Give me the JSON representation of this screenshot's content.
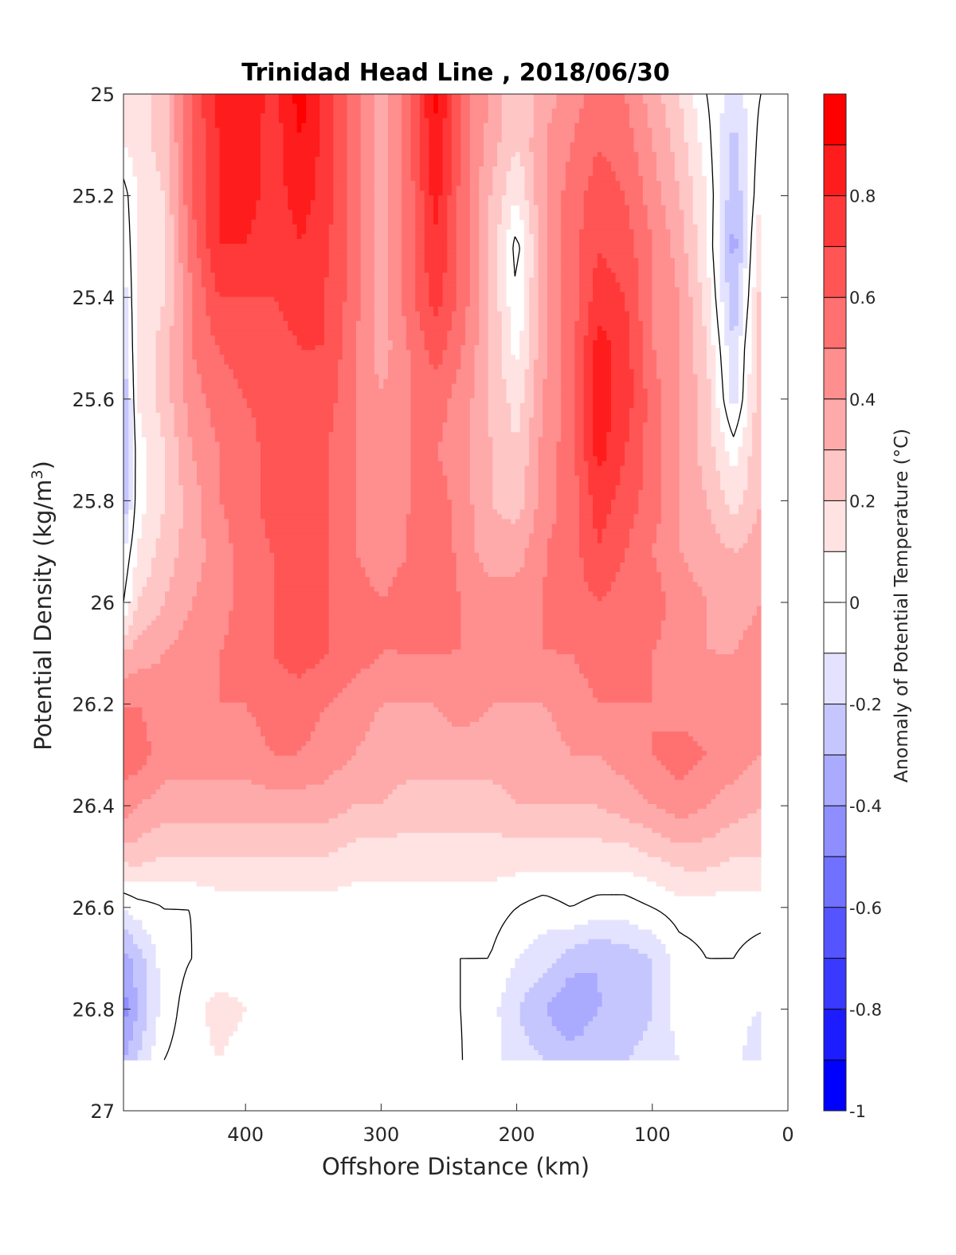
{
  "chart_data": {
    "type": "heatmap",
    "subtype": "filled-contour section",
    "title": "Trinidad Head Line , 2018/06/30",
    "xlabel": "Offshore Distance (km)",
    "ylabel": "Potential Density (kg/m",
    "ylabel_sup": "3",
    "ylabel_close": ")",
    "xlim": [
      490,
      0
    ],
    "x_reversed": true,
    "ylim": [
      25,
      27
    ],
    "y_reversed": true,
    "xticks": [
      400,
      300,
      200,
      100,
      0
    ],
    "yticks": [
      25,
      25.2,
      25.4,
      25.6,
      25.8,
      26,
      26.2,
      26.4,
      26.6,
      26.8,
      27
    ],
    "ytick_labels": [
      "25",
      "25.2",
      "25.4",
      "25.6",
      "25.8",
      "26",
      "26.2",
      "26.4",
      "26.6",
      "26.8",
      "27"
    ],
    "colorbar": {
      "label": "Anomaly of Potential Temperature (°C)",
      "range": [
        -1,
        1
      ],
      "step": 0.1,
      "ticks": [
        0.8,
        0.6,
        0.4,
        0.2,
        0,
        -0.2,
        -0.4,
        -0.6,
        -0.8,
        -1
      ],
      "tick_labels": [
        "0.8",
        "0.6",
        "0.4",
        "0.2",
        "0",
        "-0.2",
        "-0.4",
        "-0.6",
        "-0.8",
        "-1"
      ],
      "negative_color": "#0000ff",
      "positive_color": "#ff0000",
      "neutral_color": "#ffffff"
    },
    "data_extent": {
      "x": [
        20,
        490
      ],
      "y": [
        25,
        26.9
      ]
    },
    "grid": {
      "x": [
        20,
        40,
        60,
        80,
        100,
        120,
        140,
        160,
        180,
        200,
        220,
        240,
        260,
        280,
        300,
        320,
        340,
        360,
        380,
        400,
        420,
        440,
        460,
        480,
        490
      ],
      "y": [
        25,
        25.1,
        25.2,
        25.3,
        25.4,
        25.5,
        25.6,
        25.7,
        25.8,
        25.9,
        26,
        26.1,
        26.2,
        26.3,
        26.4,
        26.5,
        26.6,
        26.7,
        26.8,
        26.9
      ],
      "anomaly": [
        [
          0.0,
          -0.15,
          0.0,
          0.2,
          0.35,
          0.5,
          0.55,
          0.45,
          0.35,
          0.2,
          0.4,
          0.55,
          0.95,
          0.55,
          0.35,
          0.55,
          0.75,
          0.95,
          0.75,
          0.9,
          0.85,
          0.6,
          0.25,
          0.15,
          0.1
        ],
        [
          0.05,
          -0.25,
          0.05,
          0.25,
          0.4,
          0.55,
          0.6,
          0.5,
          0.4,
          0.2,
          0.35,
          0.55,
          0.9,
          0.55,
          0.35,
          0.55,
          0.75,
          0.9,
          0.75,
          0.85,
          0.8,
          0.6,
          0.25,
          0.15,
          0.1
        ],
        [
          0.1,
          -0.3,
          0.1,
          0.3,
          0.45,
          0.6,
          0.65,
          0.55,
          0.4,
          0.1,
          0.3,
          0.55,
          0.85,
          0.55,
          0.35,
          0.55,
          0.75,
          0.85,
          0.75,
          0.85,
          0.8,
          0.6,
          0.2,
          0.1,
          -0.05
        ],
        [
          0.2,
          -0.35,
          0.1,
          0.35,
          0.5,
          0.65,
          0.7,
          0.55,
          0.4,
          -0.05,
          0.3,
          0.55,
          0.8,
          0.55,
          0.35,
          0.55,
          0.7,
          0.8,
          0.7,
          0.8,
          0.8,
          0.55,
          0.2,
          0.1,
          -0.1
        ],
        [
          0.25,
          -0.3,
          0.15,
          0.4,
          0.5,
          0.7,
          0.75,
          0.55,
          0.4,
          0.0,
          0.3,
          0.55,
          0.75,
          0.55,
          0.35,
          0.55,
          0.7,
          0.75,
          0.7,
          0.7,
          0.7,
          0.5,
          0.2,
          0.1,
          -0.15
        ],
        [
          0.3,
          -0.2,
          0.2,
          0.4,
          0.5,
          0.75,
          0.85,
          0.55,
          0.4,
          0.05,
          0.3,
          0.5,
          0.65,
          0.5,
          0.35,
          0.5,
          0.7,
          0.7,
          0.65,
          0.65,
          0.6,
          0.5,
          0.25,
          0.1,
          -0.2
        ],
        [
          0.3,
          -0.15,
          0.25,
          0.4,
          0.55,
          0.75,
          0.85,
          0.55,
          0.4,
          0.15,
          0.3,
          0.45,
          0.55,
          0.5,
          0.4,
          0.5,
          0.65,
          0.7,
          0.65,
          0.6,
          0.55,
          0.45,
          0.25,
          0.1,
          -0.3
        ],
        [
          0.3,
          0.05,
          0.25,
          0.4,
          0.55,
          0.7,
          0.85,
          0.55,
          0.45,
          0.2,
          0.3,
          0.45,
          0.5,
          0.5,
          0.45,
          0.5,
          0.6,
          0.7,
          0.65,
          0.55,
          0.5,
          0.4,
          0.2,
          0.05,
          -0.35
        ],
        [
          0.3,
          0.15,
          0.3,
          0.4,
          0.55,
          0.65,
          0.75,
          0.55,
          0.45,
          0.25,
          0.3,
          0.45,
          0.55,
          0.5,
          0.45,
          0.5,
          0.6,
          0.7,
          0.65,
          0.55,
          0.5,
          0.35,
          0.2,
          0.05,
          -0.3
        ],
        [
          0.35,
          0.3,
          0.35,
          0.4,
          0.5,
          0.6,
          0.7,
          0.55,
          0.5,
          0.35,
          0.35,
          0.45,
          0.6,
          0.5,
          0.45,
          0.5,
          0.6,
          0.7,
          0.6,
          0.55,
          0.45,
          0.35,
          0.25,
          0.1,
          -0.1
        ],
        [
          0.4,
          0.35,
          0.4,
          0.45,
          0.55,
          0.55,
          0.6,
          0.55,
          0.5,
          0.45,
          0.45,
          0.5,
          0.55,
          0.55,
          0.5,
          0.55,
          0.6,
          0.7,
          0.6,
          0.55,
          0.45,
          0.4,
          0.3,
          0.2,
          0.0
        ],
        [
          0.45,
          0.4,
          0.4,
          0.45,
          0.5,
          0.55,
          0.55,
          0.5,
          0.5,
          0.5,
          0.5,
          0.5,
          0.5,
          0.5,
          0.5,
          0.55,
          0.6,
          0.65,
          0.6,
          0.55,
          0.5,
          0.45,
          0.4,
          0.35,
          0.3
        ],
        [
          0.45,
          0.45,
          0.45,
          0.45,
          0.5,
          0.5,
          0.5,
          0.45,
          0.4,
          0.4,
          0.4,
          0.45,
          0.4,
          0.4,
          0.4,
          0.45,
          0.5,
          0.55,
          0.55,
          0.5,
          0.5,
          0.45,
          0.45,
          0.5,
          0.5
        ],
        [
          0.4,
          0.45,
          0.5,
          0.55,
          0.5,
          0.45,
          0.4,
          0.4,
          0.35,
          0.35,
          0.35,
          0.35,
          0.35,
          0.35,
          0.35,
          0.4,
          0.45,
          0.5,
          0.5,
          0.45,
          0.45,
          0.45,
          0.45,
          0.55,
          0.55
        ],
        [
          0.3,
          0.35,
          0.4,
          0.45,
          0.4,
          0.35,
          0.3,
          0.3,
          0.3,
          0.3,
          0.25,
          0.25,
          0.25,
          0.25,
          0.3,
          0.3,
          0.35,
          0.35,
          0.35,
          0.35,
          0.35,
          0.35,
          0.35,
          0.4,
          0.45
        ],
        [
          0.2,
          0.2,
          0.25,
          0.25,
          0.2,
          0.15,
          0.15,
          0.15,
          0.15,
          0.15,
          0.15,
          0.15,
          0.15,
          0.15,
          0.15,
          0.15,
          0.2,
          0.2,
          0.2,
          0.2,
          0.2,
          0.2,
          0.2,
          0.25,
          0.25
        ],
        [
          0.05,
          0.05,
          0.05,
          0.05,
          0.0,
          -0.05,
          -0.05,
          0.0,
          -0.05,
          0.0,
          0.05,
          0.05,
          0.05,
          0.05,
          0.05,
          0.05,
          0.05,
          0.05,
          0.05,
          0.05,
          0.05,
          0.0,
          0.0,
          -0.05,
          -0.1
        ],
        [
          -0.05,
          0.0,
          0.0,
          -0.05,
          -0.2,
          -0.25,
          -0.3,
          -0.25,
          -0.15,
          -0.1,
          0.0,
          0.0,
          0.0,
          0.0,
          0.0,
          0.0,
          0.0,
          0.0,
          0.05,
          0.05,
          0.0,
          0.0,
          -0.05,
          -0.25,
          -0.35
        ],
        [
          -0.1,
          -0.05,
          0.0,
          -0.05,
          -0.2,
          -0.3,
          -0.3,
          -0.4,
          -0.3,
          -0.2,
          -0.05,
          0.0,
          0.0,
          0.0,
          0.0,
          0.05,
          0.0,
          0.05,
          0.05,
          0.1,
          0.15,
          0.05,
          -0.05,
          -0.3,
          -0.45
        ],
        [
          -0.2,
          -0.05,
          0.0,
          -0.1,
          -0.15,
          -0.2,
          -0.2,
          -0.25,
          -0.2,
          -0.15,
          -0.05,
          0.0,
          0.05,
          0.05,
          0.0,
          0.05,
          0.0,
          0.05,
          0.05,
          0.05,
          0.1,
          0.05,
          0.0,
          -0.2,
          -0.3
        ]
      ]
    },
    "zero_contour": true
  }
}
